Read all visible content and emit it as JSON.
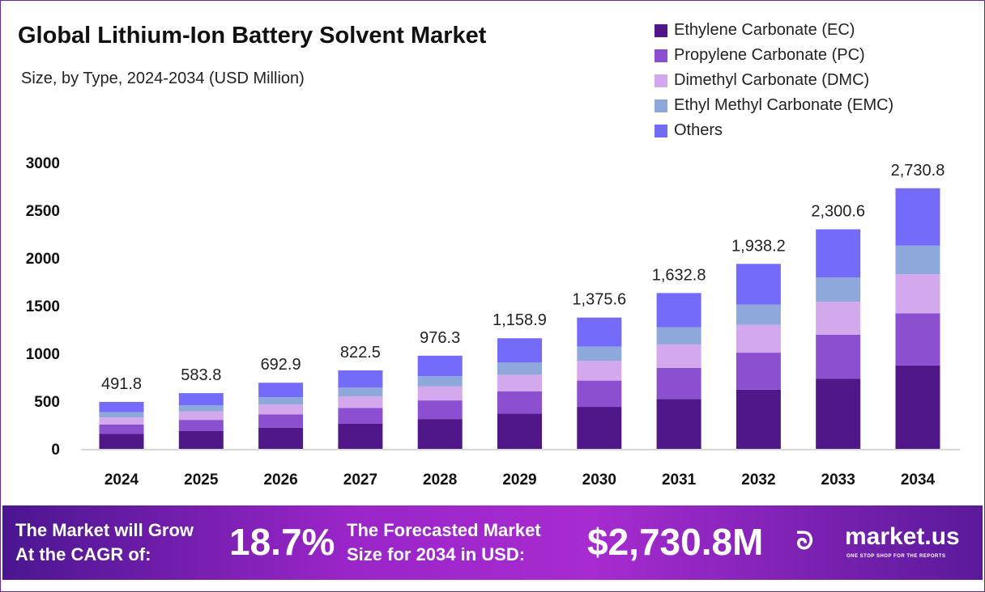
{
  "header": {
    "title": "Global Lithium-Ion Battery Solvent Market",
    "subtitle": "Size, by Type, 2024-2034 (USD Million)"
  },
  "chart_data": {
    "type": "bar",
    "stacked": true,
    "categories": [
      "2024",
      "2025",
      "2026",
      "2027",
      "2028",
      "2029",
      "2030",
      "2031",
      "2032",
      "2033",
      "2034"
    ],
    "totals": [
      "491.8",
      "583.8",
      "692.9",
      "822.5",
      "976.3",
      "1,158.9",
      "1,375.6",
      "1,632.8",
      "1,938.2",
      "2,300.6",
      "2,730.8"
    ],
    "ylim": [
      0,
      3000
    ],
    "yticks": [
      "0",
      "500",
      "1000",
      "1500",
      "2000",
      "2500",
      "3000"
    ],
    "grid": false,
    "legend_position": "top-right",
    "series": [
      {
        "name": "Ethylene Carbonate (EC)",
        "color": "#4f1787",
        "values": [
          157.4,
          186.8,
          221.7,
          263.2,
          312.4,
          370.8,
          440.2,
          522.5,
          620.2,
          736.2,
          873.9
        ]
      },
      {
        "name": "Propylene Carbonate (PC)",
        "color": "#8b4fcf",
        "values": [
          98.4,
          116.8,
          138.6,
          164.5,
          195.3,
          231.8,
          275.1,
          326.6,
          387.6,
          460.1,
          546.2
        ]
      },
      {
        "name": "Dimethyl Carbonate (DMC)",
        "color": "#d4a8ec",
        "values": [
          73.8,
          87.6,
          103.9,
          123.4,
          146.4,
          173.8,
          206.3,
          244.9,
          290.7,
          345.1,
          409.6
        ]
      },
      {
        "name": "Ethyl Methyl Carbonate (EMC)",
        "color": "#8fa8dc",
        "values": [
          54.1,
          64.2,
          76.2,
          90.5,
          107.4,
          127.5,
          151.3,
          179.6,
          213.2,
          253.1,
          300.4
        ]
      },
      {
        "name": "Others",
        "color": "#756bfb",
        "values": [
          108.1,
          128.4,
          152.5,
          180.9,
          214.8,
          255.0,
          302.7,
          359.2,
          426.5,
          506.1,
          600.7
        ]
      }
    ]
  },
  "footer": {
    "cagr_label_1": "The Market will Grow",
    "cagr_label_2": "At the CAGR of:",
    "cagr_value": "18.7%",
    "forecast_label_1": "The Forecasted Market",
    "forecast_label_2": "Size for 2034 in USD:",
    "forecast_value": "$2,730.8M",
    "brand": "market.us",
    "brand_tagline": "ONE STOP SHOP FOR THE REPORTS"
  }
}
